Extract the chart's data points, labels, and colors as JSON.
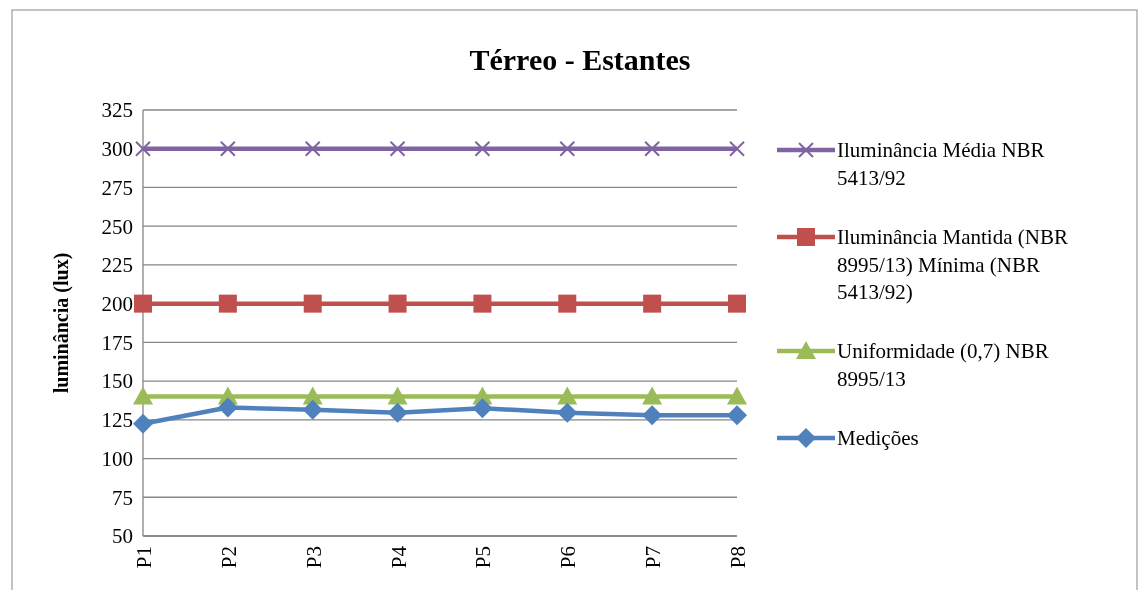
{
  "chart_data": {
    "type": "line",
    "title": "Térreo - Estantes",
    "ylabel": "luminância (lux)",
    "categories": [
      "P1",
      "P2",
      "P3",
      "P4",
      "P5",
      "P6",
      "P7",
      "P8"
    ],
    "series": [
      {
        "name": "Iluminância Média NBR 5413/92",
        "color": "#8064a2",
        "marker": "cross",
        "values": [
          300,
          300,
          300,
          300,
          300,
          300,
          300,
          300
        ]
      },
      {
        "name": "Iluminância Mantida (NBR 8995/13) Mínima (NBR 5413/92)",
        "color": "#c0504d",
        "marker": "square",
        "values": [
          200,
          200,
          200,
          200,
          200,
          200,
          200,
          200
        ]
      },
      {
        "name": "Uniformidade (0,7) NBR 8995/13",
        "color": "#9bbb59",
        "marker": "triangle",
        "values": [
          140,
          140,
          140,
          140,
          140,
          140,
          140,
          140
        ]
      },
      {
        "name": "Medições",
        "color": "#4f81bd",
        "marker": "diamond",
        "values": [
          122.5,
          133,
          131.5,
          129.5,
          132.5,
          129.5,
          128,
          128
        ]
      }
    ],
    "ylim": [
      50,
      325
    ],
    "yticks": [
      50,
      75,
      100,
      125,
      150,
      175,
      200,
      225,
      250,
      275,
      300,
      325
    ],
    "grid": "y",
    "legend": "right"
  }
}
